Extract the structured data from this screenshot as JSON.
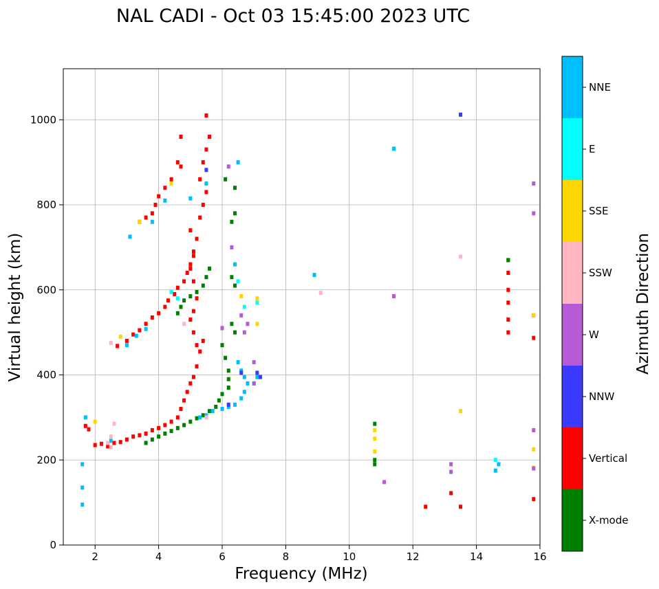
{
  "chart_data": {
    "type": "scatter",
    "title": "NAL CADI - Oct 03 15:45:00 2023 UTC",
    "xlabel": "Frequency (MHz)",
    "ylabel": "Virtual height (km)",
    "xlim": [
      1,
      16
    ],
    "ylim": [
      0,
      1120
    ],
    "xticks": [
      2,
      4,
      6,
      8,
      10,
      12,
      14,
      16
    ],
    "yticks": [
      0,
      200,
      400,
      600,
      800,
      1000
    ],
    "grid": true,
    "colorbar": {
      "label": "Azimuth Direction",
      "categories": [
        {
          "name": "X-mode",
          "color": "#008000"
        },
        {
          "name": "Vertical",
          "color": "#ff0000"
        },
        {
          "name": "NNW",
          "color": "#3b3bff"
        },
        {
          "name": "W",
          "color": "#b65ad6"
        },
        {
          "name": "SSW",
          "color": "#ffb6c1"
        },
        {
          "name": "SSE",
          "color": "#ffd700"
        },
        {
          "name": "E",
          "color": "#00ffff"
        },
        {
          "name": "NNE",
          "color": "#00bfff"
        }
      ]
    },
    "series": [
      {
        "name": "Vertical",
        "points": [
          [
            1.7,
            280
          ],
          [
            1.8,
            272
          ],
          [
            2.0,
            235
          ],
          [
            2.2,
            238
          ],
          [
            2.4,
            232
          ],
          [
            2.6,
            240
          ],
          [
            2.8,
            242
          ],
          [
            3.0,
            248
          ],
          [
            3.2,
            255
          ],
          [
            3.4,
            258
          ],
          [
            3.6,
            262
          ],
          [
            3.8,
            270
          ],
          [
            4.0,
            275
          ],
          [
            4.2,
            282
          ],
          [
            4.4,
            290
          ],
          [
            4.6,
            300
          ],
          [
            4.7,
            320
          ],
          [
            4.8,
            340
          ],
          [
            4.9,
            360
          ],
          [
            5.0,
            380
          ],
          [
            5.1,
            395
          ],
          [
            5.2,
            420
          ],
          [
            5.3,
            455
          ],
          [
            5.4,
            480
          ],
          [
            5.2,
            470
          ],
          [
            5.1,
            500
          ],
          [
            5.0,
            530
          ],
          [
            5.1,
            550
          ],
          [
            5.2,
            580
          ],
          [
            5.1,
            620
          ],
          [
            5.0,
            650
          ],
          [
            5.1,
            690
          ],
          [
            5.2,
            720
          ],
          [
            5.0,
            740
          ],
          [
            5.3,
            770
          ],
          [
            5.4,
            800
          ],
          [
            5.5,
            830
          ],
          [
            5.3,
            860
          ],
          [
            5.4,
            900
          ],
          [
            5.5,
            930
          ],
          [
            5.6,
            960
          ],
          [
            5.5,
            1010
          ],
          [
            2.7,
            468
          ],
          [
            3.0,
            480
          ],
          [
            3.2,
            495
          ],
          [
            3.4,
            505
          ],
          [
            3.6,
            520
          ],
          [
            3.8,
            535
          ],
          [
            4.0,
            545
          ],
          [
            4.2,
            560
          ],
          [
            4.3,
            575
          ],
          [
            4.5,
            590
          ],
          [
            4.6,
            605
          ],
          [
            4.8,
            620
          ],
          [
            4.9,
            640
          ],
          [
            5.0,
            660
          ],
          [
            5.1,
            680
          ],
          [
            3.4,
            760
          ],
          [
            3.6,
            770
          ],
          [
            3.8,
            780
          ],
          [
            3.9,
            800
          ],
          [
            4.0,
            820
          ],
          [
            4.2,
            840
          ],
          [
            4.4,
            860
          ],
          [
            4.7,
            890
          ],
          [
            4.6,
            900
          ],
          [
            4.7,
            960
          ],
          [
            15.0,
            500
          ],
          [
            15.0,
            530
          ],
          [
            15.0,
            570
          ],
          [
            15.0,
            600
          ],
          [
            15.0,
            640
          ],
          [
            15.0,
            670
          ],
          [
            15.8,
            108
          ],
          [
            15.8,
            487
          ],
          [
            15.8,
            540
          ],
          [
            13.2,
            122
          ],
          [
            13.5,
            90
          ],
          [
            12.4,
            90
          ]
        ]
      },
      {
        "name": "X-mode",
        "points": [
          [
            3.6,
            240
          ],
          [
            3.8,
            248
          ],
          [
            4.0,
            255
          ],
          [
            4.2,
            262
          ],
          [
            4.4,
            268
          ],
          [
            4.6,
            275
          ],
          [
            4.8,
            282
          ],
          [
            5.0,
            290
          ],
          [
            5.2,
            298
          ],
          [
            5.4,
            305
          ],
          [
            5.6,
            315
          ],
          [
            5.8,
            325
          ],
          [
            5.9,
            340
          ],
          [
            6.0,
            355
          ],
          [
            6.2,
            370
          ],
          [
            6.2,
            390
          ],
          [
            6.2,
            410
          ],
          [
            6.1,
            440
          ],
          [
            6.0,
            470
          ],
          [
            6.0,
            510
          ],
          [
            4.6,
            545
          ],
          [
            4.7,
            560
          ],
          [
            4.8,
            575
          ],
          [
            5.0,
            585
          ],
          [
            5.2,
            595
          ],
          [
            5.4,
            610
          ],
          [
            5.5,
            630
          ],
          [
            5.6,
            650
          ],
          [
            6.3,
            630
          ],
          [
            6.4,
            610
          ],
          [
            6.3,
            520
          ],
          [
            6.4,
            500
          ],
          [
            6.3,
            760
          ],
          [
            6.4,
            780
          ],
          [
            6.4,
            840
          ],
          [
            6.1,
            860
          ],
          [
            10.8,
            190
          ],
          [
            10.8,
            200
          ],
          [
            10.8,
            285
          ],
          [
            15.0,
            670
          ]
        ]
      },
      {
        "name": "NNE",
        "points": [
          [
            1.6,
            95
          ],
          [
            1.6,
            135
          ],
          [
            1.6,
            190
          ],
          [
            1.7,
            300
          ],
          [
            2.5,
            245
          ],
          [
            3.0,
            470
          ],
          [
            3.3,
            492
          ],
          [
            3.6,
            508
          ],
          [
            3.8,
            760
          ],
          [
            3.1,
            725
          ],
          [
            4.2,
            810
          ],
          [
            5.0,
            815
          ],
          [
            5.5,
            850
          ],
          [
            5.3,
            300
          ],
          [
            5.5,
            305
          ],
          [
            5.7,
            315
          ],
          [
            6.0,
            320
          ],
          [
            6.2,
            325
          ],
          [
            6.4,
            330
          ],
          [
            6.6,
            345
          ],
          [
            6.7,
            360
          ],
          [
            6.8,
            380
          ],
          [
            6.7,
            395
          ],
          [
            6.6,
            410
          ],
          [
            6.5,
            430
          ],
          [
            7.0,
            380
          ],
          [
            7.1,
            395
          ],
          [
            6.4,
            660
          ],
          [
            6.5,
            900
          ],
          [
            14.6,
            175
          ],
          [
            14.7,
            190
          ],
          [
            11.4,
            932
          ],
          [
            8.9,
            635
          ]
        ]
      },
      {
        "name": "E",
        "points": [
          [
            4.4,
            595
          ],
          [
            4.6,
            580
          ],
          [
            6.5,
            620
          ],
          [
            6.7,
            560
          ],
          [
            14.6,
            200
          ],
          [
            7.1,
            570
          ]
        ]
      },
      {
        "name": "SSE",
        "points": [
          [
            2.0,
            290
          ],
          [
            4.4,
            850
          ],
          [
            6.6,
            585
          ],
          [
            7.1,
            580
          ],
          [
            7.1,
            520
          ],
          [
            10.8,
            220
          ],
          [
            10.8,
            250
          ],
          [
            10.8,
            270
          ],
          [
            13.5,
            315
          ],
          [
            15.8,
            540
          ],
          [
            15.8,
            225
          ],
          [
            15.8,
            182
          ],
          [
            2.8,
            490
          ],
          [
            3.4,
            760
          ]
        ]
      },
      {
        "name": "W",
        "points": [
          [
            6.0,
            510
          ],
          [
            6.6,
            540
          ],
          [
            6.7,
            500
          ],
          [
            6.8,
            520
          ],
          [
            7.0,
            430
          ],
          [
            7.0,
            380
          ],
          [
            11.1,
            148
          ],
          [
            11.4,
            585
          ],
          [
            13.2,
            172
          ],
          [
            13.2,
            190
          ],
          [
            15.8,
            270
          ],
          [
            15.8,
            780
          ],
          [
            15.8,
            850
          ],
          [
            15.8,
            180
          ],
          [
            6.3,
            700
          ],
          [
            6.2,
            890
          ]
        ]
      },
      {
        "name": "NNW",
        "points": [
          [
            13.5,
            1012
          ],
          [
            7.2,
            395
          ],
          [
            7.1,
            405
          ],
          [
            6.6,
            405
          ],
          [
            5.5,
            882
          ],
          [
            6.2,
            330
          ]
        ]
      },
      {
        "name": "SSW",
        "points": [
          [
            2.4,
            240
          ],
          [
            2.5,
            230
          ],
          [
            2.5,
            255
          ],
          [
            2.5,
            475
          ],
          [
            9.1,
            593
          ],
          [
            13.5,
            678
          ],
          [
            5.5,
            300
          ],
          [
            4.8,
            520
          ],
          [
            2.6,
            285
          ]
        ]
      }
    ]
  }
}
